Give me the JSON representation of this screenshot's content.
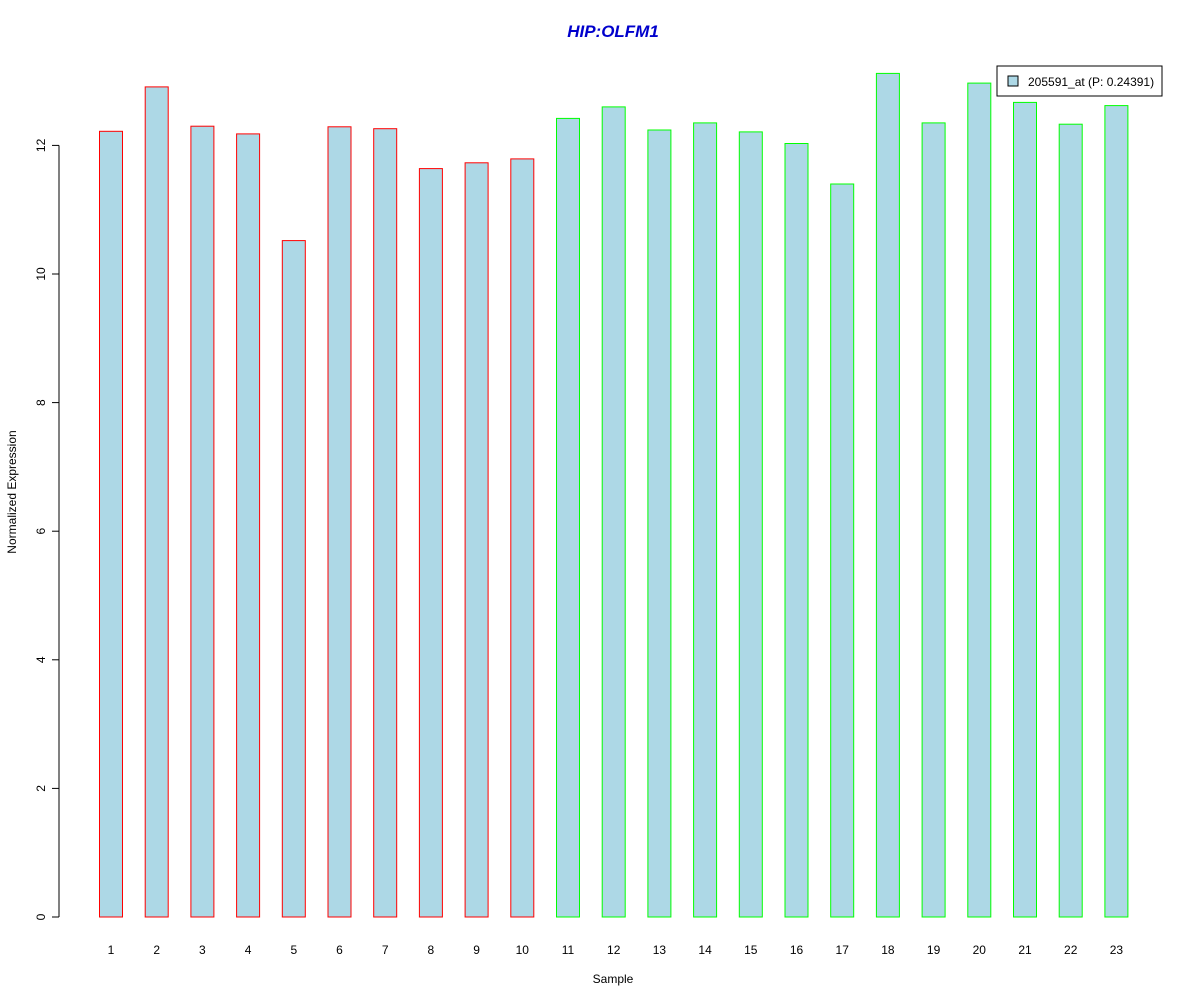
{
  "chart_data": {
    "type": "bar",
    "title": "HIP:OLFM1",
    "xlabel": "Sample",
    "ylabel": "Normalized Expression",
    "categories": [
      "1",
      "2",
      "3",
      "4",
      "5",
      "6",
      "7",
      "8",
      "9",
      "10",
      "11",
      "12",
      "13",
      "14",
      "15",
      "16",
      "17",
      "18",
      "19",
      "20",
      "21",
      "22",
      "23"
    ],
    "series": [
      {
        "name": "205591_at (P: 0.24391)",
        "values": [
          12.22,
          12.91,
          12.3,
          12.18,
          10.52,
          12.29,
          12.26,
          11.64,
          11.73,
          11.79,
          12.42,
          12.6,
          12.24,
          12.35,
          12.21,
          12.03,
          11.4,
          13.12,
          12.35,
          12.97,
          12.67,
          12.33,
          12.62
        ]
      }
    ],
    "group_a_count": 10,
    "ylim": [
      0,
      13.5
    ],
    "yticks": [
      0,
      2,
      4,
      6,
      8,
      10,
      12
    ],
    "grid": false,
    "legend_position": "top-right",
    "colors": {
      "bar_fill": "#add8e6",
      "group_a_border": "#ff0000",
      "group_b_border": "#00ff00",
      "title": "#0000cc"
    }
  }
}
